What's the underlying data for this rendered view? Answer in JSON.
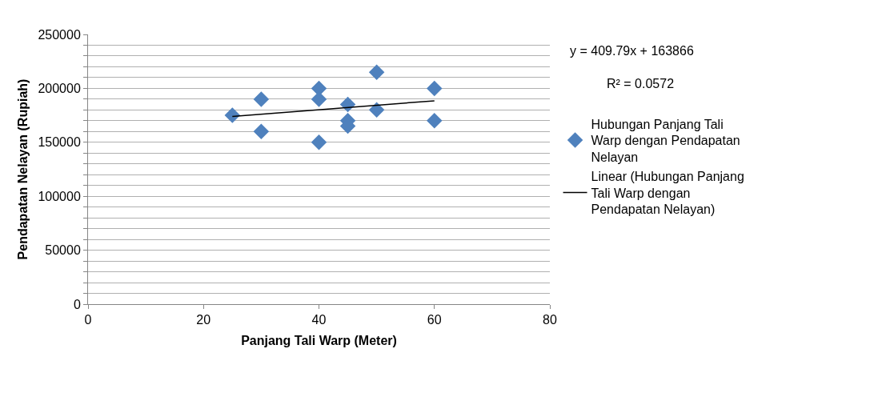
{
  "chart_data": {
    "type": "scatter",
    "xlabel": "Panjang Tali Warp (Meter)",
    "ylabel": "Pendapatan Nelayan (Rupiah)",
    "annotations": [
      "y = 409.79x + 163866",
      "R² = 0.0572"
    ],
    "series": [
      {
        "name": "Hubungan Panjang Tali Warp dengan Pendapatan Nelayan",
        "color": "#4f81bd",
        "marker": "diamond",
        "x": [
          25,
          30,
          30,
          40,
          40,
          40,
          45,
          45,
          45,
          50,
          50,
          60,
          60
        ],
        "values": [
          175000,
          190000,
          160000,
          200000,
          190000,
          150000,
          185000,
          170000,
          165000,
          215000,
          180000,
          200000,
          170000
        ]
      },
      {
        "name": "Linear (Hubungan Panjang Tali Warp dengan Pendapatan Nelayan)",
        "type": "line",
        "color": "#000000",
        "marker": "none",
        "line_style": "solid",
        "x": [
          25,
          60
        ],
        "values": [
          174000,
          188500
        ]
      }
    ],
    "xlim": [
      0,
      80
    ],
    "xticks": [
      0,
      20,
      40,
      60,
      80
    ],
    "ylim": [
      0,
      250000
    ],
    "yticks": [
      0,
      {
        "value": 10000,
        "label": null
      },
      {
        "value": 20000,
        "label": null
      },
      {
        "value": 30000,
        "label": null
      },
      {
        "value": 40000,
        "label": null
      },
      50000,
      {
        "value": 60000,
        "label": null
      },
      {
        "value": 70000,
        "label": null
      },
      {
        "value": 80000,
        "label": null
      },
      {
        "value": 90000,
        "label": null
      },
      100000,
      {
        "value": 110000,
        "label": null
      },
      {
        "value": 120000,
        "label": null
      },
      {
        "value": 130000,
        "label": null
      },
      {
        "value": 140000,
        "label": null
      },
      150000,
      {
        "value": 160000,
        "label": null
      },
      {
        "value": 170000,
        "label": null
      },
      {
        "value": 180000,
        "label": null
      },
      {
        "value": 190000,
        "label": null
      },
      200000,
      {
        "value": 210000,
        "label": null
      },
      {
        "value": 220000,
        "label": null
      },
      {
        "value": 230000,
        "label": null
      },
      {
        "value": 240000,
        "label": null
      },
      250000
    ],
    "grid": "y",
    "legend": "right"
  }
}
